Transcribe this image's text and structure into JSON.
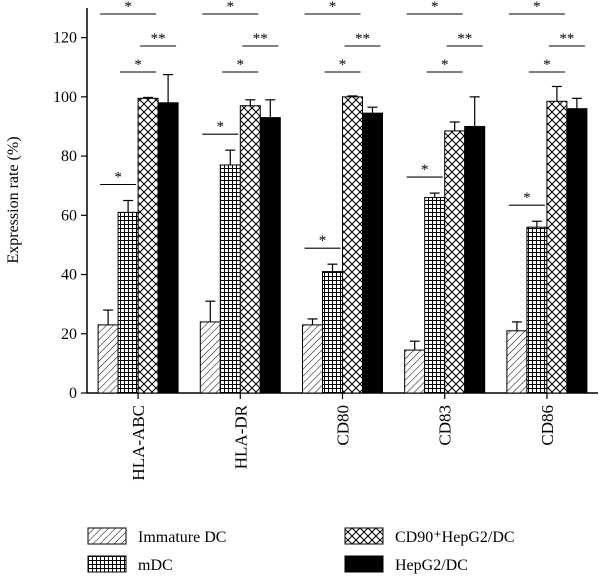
{
  "chart_data": {
    "type": "bar",
    "ylabel": "Expression rate (%)",
    "xlabel": "",
    "ylim": [
      0,
      130
    ],
    "yticks": [
      0,
      20,
      40,
      60,
      80,
      100,
      120
    ],
    "categories": [
      "HLA-ABC",
      "HLA-DR",
      "CD80",
      "CD83",
      "CD86"
    ],
    "series": [
      {
        "name": "Immature DC",
        "pattern": "diagonal-hatch",
        "values": [
          23,
          24,
          23,
          14.5,
          21
        ],
        "errors": [
          5,
          7,
          2,
          3,
          3
        ]
      },
      {
        "name": "mDC",
        "pattern": "grid-hatch",
        "values": [
          61,
          77,
          41,
          66,
          56
        ],
        "errors": [
          4,
          5,
          2.5,
          1.5,
          2
        ]
      },
      {
        "name": "CD90⁺HepG2/DC",
        "pattern": "cross-hatch",
        "values": [
          99.5,
          97,
          100,
          88.5,
          98.5
        ],
        "errors": [
          0.3,
          2,
          0.3,
          3,
          5
        ]
      },
      {
        "name": "HepG2/DC",
        "pattern": "solid-black",
        "values": [
          98,
          93,
          94.5,
          90,
          96
        ],
        "errors": [
          9.5,
          6,
          2,
          10,
          3.5
        ]
      }
    ],
    "significance": [
      {
        "category": "HLA-ABC",
        "from": 0,
        "to": 1,
        "label": "*"
      },
      {
        "category": "HLA-ABC",
        "from": 1,
        "to": 2,
        "label": "*"
      },
      {
        "category": "HLA-ABC",
        "from": 2,
        "to": 3,
        "label": "**"
      },
      {
        "category": "HLA-ABC",
        "from": 0,
        "to": 2,
        "label": "*"
      },
      {
        "category": "HLA-DR",
        "from": 0,
        "to": 1,
        "label": "*"
      },
      {
        "category": "HLA-DR",
        "from": 1,
        "to": 2,
        "label": "*"
      },
      {
        "category": "HLA-DR",
        "from": 2,
        "to": 3,
        "label": "**"
      },
      {
        "category": "HLA-DR",
        "from": 0,
        "to": 2,
        "label": "*"
      },
      {
        "category": "CD80",
        "from": 0,
        "to": 1,
        "label": "*"
      },
      {
        "category": "CD80",
        "from": 1,
        "to": 2,
        "label": "*"
      },
      {
        "category": "CD80",
        "from": 2,
        "to": 3,
        "label": "**"
      },
      {
        "category": "CD80",
        "from": 0,
        "to": 2,
        "label": "*"
      },
      {
        "category": "CD83",
        "from": 0,
        "to": 1,
        "label": "*"
      },
      {
        "category": "CD83",
        "from": 1,
        "to": 2,
        "label": "*"
      },
      {
        "category": "CD83",
        "from": 2,
        "to": 3,
        "label": "**"
      },
      {
        "category": "CD83",
        "from": 0,
        "to": 2,
        "label": "*"
      },
      {
        "category": "CD86",
        "from": 0,
        "to": 1,
        "label": "*"
      },
      {
        "category": "CD86",
        "from": 1,
        "to": 2,
        "label": "*"
      },
      {
        "category": "CD86",
        "from": 2,
        "to": 3,
        "label": "**"
      },
      {
        "category": "CD86",
        "from": 0,
        "to": 2,
        "label": "*"
      }
    ],
    "legend": {
      "placement": "bottom",
      "columns": 2
    }
  }
}
